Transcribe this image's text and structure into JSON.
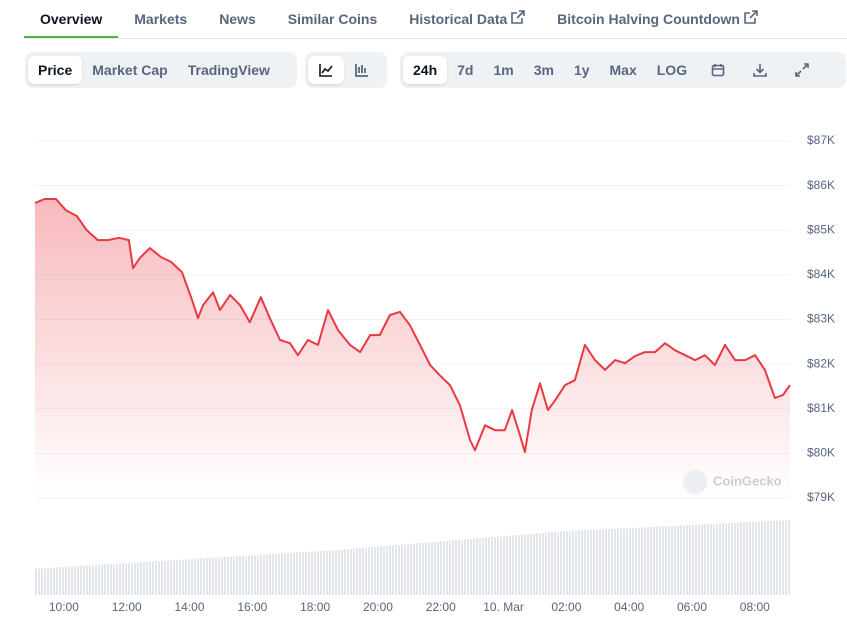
{
  "tabs": [
    "Overview",
    "Markets",
    "News",
    "Similar Coins",
    "Historical Data",
    "Bitcoin Halving Countdown"
  ],
  "toolbar": {
    "views": [
      "Price",
      "Market Cap",
      "TradingView"
    ],
    "ranges": [
      "24h",
      "7d",
      "1m",
      "3m",
      "1y",
      "Max",
      "LOG"
    ]
  },
  "watermark": "CoinGecko",
  "chart_data": {
    "type": "area",
    "color": "#ea3943",
    "x": [
      9.08,
      9.39,
      9.75,
      10.06,
      10.41,
      10.73,
      11.08,
      11.4,
      11.75,
      12.07,
      12.2,
      12.42,
      12.74,
      13.09,
      13.41,
      13.76,
      14.08,
      14.27,
      14.43,
      14.75,
      14.97,
      15.29,
      15.61,
      15.92,
      16.27,
      16.56,
      16.88,
      17.2,
      17.45,
      17.77,
      18.09,
      18.41,
      18.73,
      19.11,
      19.43,
      19.75,
      20.06,
      20.38,
      20.7,
      21.02,
      21.34,
      21.66,
      21.97,
      22.29,
      22.61,
      22.93,
      23.09,
      23.41,
      23.73,
      24.04,
      24.27,
      24.52,
      24.68,
      24.9,
      25.16,
      25.41,
      25.64,
      25.96,
      26.27,
      26.59,
      26.91,
      27.23,
      27.55,
      27.87,
      28.18,
      28.5,
      28.82,
      29.14,
      29.46,
      29.78,
      30.1,
      30.41,
      30.73,
      31.05,
      31.37,
      31.69,
      32.01,
      32.32,
      32.64,
      32.9,
      33.12
    ],
    "values": [
      85610,
      85700,
      85700,
      85450,
      85320,
      85000,
      84780,
      84780,
      84830,
      84780,
      84150,
      84380,
      84600,
      84400,
      84290,
      84060,
      83440,
      83030,
      83320,
      83610,
      83210,
      83550,
      83320,
      82940,
      83500,
      83030,
      82540,
      82470,
      82200,
      82540,
      82430,
      83210,
      82760,
      82430,
      82270,
      82650,
      82650,
      83100,
      83170,
      82870,
      82430,
      81980,
      81750,
      81530,
      81080,
      80300,
      80070,
      80630,
      80520,
      80520,
      80970,
      80410,
      80030,
      80970,
      81570,
      80970,
      81190,
      81530,
      81640,
      82430,
      82090,
      81870,
      82090,
      82020,
      82180,
      82270,
      82270,
      82470,
      82310,
      82200,
      82090,
      82200,
      81980,
      82430,
      82090,
      82090,
      82200,
      81870,
      81240,
      81310,
      81530
    ],
    "xlim": [
      9.08,
      33.12
    ],
    "xticks": [
      {
        "value": 10,
        "label": "10:00"
      },
      {
        "value": 12,
        "label": "12:00"
      },
      {
        "value": 14,
        "label": "14:00"
      },
      {
        "value": 16,
        "label": "16:00"
      },
      {
        "value": 18,
        "label": "18:00"
      },
      {
        "value": 20,
        "label": "20:00"
      },
      {
        "value": 22,
        "label": "22:00"
      },
      {
        "value": 24,
        "label": "10. Mar"
      },
      {
        "value": 26,
        "label": "02:00"
      },
      {
        "value": 28,
        "label": "04:00"
      },
      {
        "value": 30,
        "label": "06:00"
      },
      {
        "value": 32,
        "label": "08:00"
      }
    ],
    "ylim": [
      79000,
      87000
    ],
    "yticks": [
      {
        "value": 79000,
        "label": "$79K"
      },
      {
        "value": 80000,
        "label": "$80K"
      },
      {
        "value": 81000,
        "label": "$81K"
      },
      {
        "value": 82000,
        "label": "$82K"
      },
      {
        "value": 83000,
        "label": "$83K"
      },
      {
        "value": 84000,
        "label": "$84K"
      },
      {
        "value": 85000,
        "label": "$85K"
      },
      {
        "value": 86000,
        "label": "$86K"
      },
      {
        "value": 87000,
        "label": "$87K"
      }
    ],
    "grid": true
  }
}
